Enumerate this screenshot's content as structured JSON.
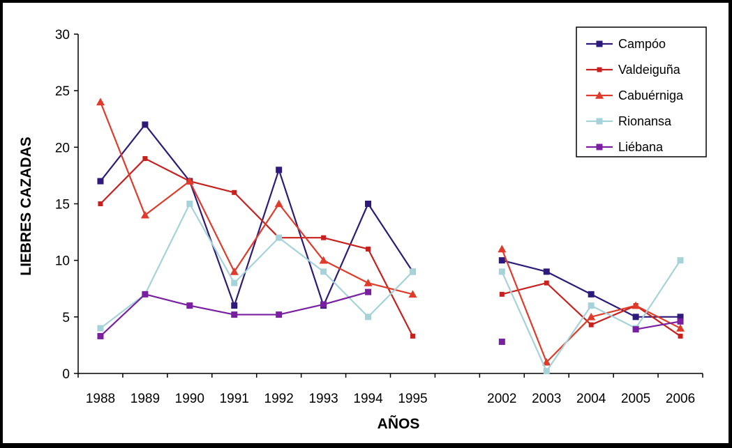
{
  "chart_data": {
    "type": "line",
    "title": "",
    "xlabel": "AÑOS",
    "ylabel": "LIEBRES CAZADAS",
    "ylim": [
      0,
      30
    ],
    "yticks": [
      "0",
      "5",
      "10",
      "15",
      "20",
      "25",
      "30"
    ],
    "categories": [
      "1988",
      "1989",
      "1990",
      "1991",
      "1992",
      "1993",
      "1994",
      "1995",
      "",
      "2002",
      "2003",
      "2004",
      "2005",
      "2006"
    ],
    "grid": false,
    "legend_position": "top-right",
    "series": [
      {
        "name": "Campóo",
        "color": "#2e1a7a",
        "marker": "square",
        "values": [
          17,
          22,
          17,
          6,
          18,
          6,
          15,
          9,
          null,
          10,
          9,
          7,
          5,
          5
        ]
      },
      {
        "name": "Valdeiguña",
        "color": "#c8201e",
        "marker": "small-square",
        "values": [
          15,
          19,
          17,
          16,
          12,
          12,
          11,
          3.3,
          null,
          7,
          8,
          4.3,
          6,
          3.3
        ]
      },
      {
        "name": "Cabuérniga",
        "color": "#e03b2a",
        "marker": "triangle",
        "values": [
          24,
          14,
          17,
          9,
          15,
          10,
          8,
          7,
          null,
          11,
          1,
          5,
          6,
          4
        ]
      },
      {
        "name": "Rionansa",
        "color": "#a6d3da",
        "marker": "square",
        "values": [
          4,
          7,
          15,
          8,
          12,
          9,
          5,
          9,
          null,
          9,
          0.2,
          6,
          4,
          10
        ]
      },
      {
        "name": "Liébana",
        "color": "#7a1fa2",
        "marker": "square",
        "values": [
          3.3,
          7,
          6,
          5.2,
          5.2,
          6.1,
          7.2,
          null,
          null,
          2.8,
          null,
          null,
          3.9,
          4.6
        ]
      }
    ]
  }
}
